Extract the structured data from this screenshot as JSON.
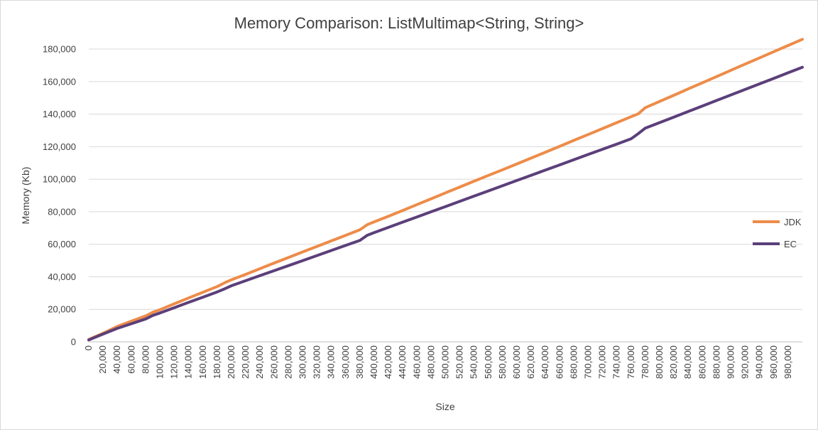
{
  "chart_data": {
    "type": "line",
    "title": "Memory Comparison: ListMultimap<String, String>",
    "xlabel": "Size",
    "ylabel": "Memory  (Kb)",
    "ylim": [
      0,
      180000
    ],
    "yticks": [
      "0",
      "20,000",
      "40,000",
      "60,000",
      "80,000",
      "100,000",
      "120,000",
      "140,000",
      "160,000",
      "180,000"
    ],
    "xlim": [
      0,
      1000000
    ],
    "xticks": [
      "0",
      "20,000",
      "40,000",
      "60,000",
      "80,000",
      "100,000",
      "120,000",
      "140,000",
      "160,000",
      "180,000",
      "200,000",
      "220,000",
      "240,000",
      "260,000",
      "280,000",
      "300,000",
      "320,000",
      "340,000",
      "360,000",
      "380,000",
      "400,000",
      "420,000",
      "440,000",
      "460,000",
      "480,000",
      "500,000",
      "520,000",
      "540,000",
      "560,000",
      "580,000",
      "600,000",
      "620,000",
      "640,000",
      "660,000",
      "680,000",
      "700,000",
      "720,000",
      "740,000",
      "760,000",
      "780,000",
      "800,000",
      "820,000",
      "840,000",
      "860,000",
      "880,000",
      "900,000",
      "920,000",
      "940,000",
      "960,000",
      "980,000"
    ],
    "grid": true,
    "legend_position": "right",
    "x": [
      0,
      20000,
      40000,
      60000,
      80000,
      90000,
      100000,
      120000,
      140000,
      160000,
      180000,
      190000,
      200000,
      220000,
      240000,
      260000,
      280000,
      300000,
      320000,
      340000,
      360000,
      380000,
      390000,
      400000,
      420000,
      440000,
      460000,
      480000,
      500000,
      520000,
      540000,
      560000,
      580000,
      600000,
      620000,
      640000,
      660000,
      680000,
      700000,
      720000,
      740000,
      760000,
      770000,
      780000,
      800000,
      820000,
      840000,
      860000,
      880000,
      900000,
      920000,
      940000,
      960000,
      980000,
      1000000
    ],
    "series": [
      {
        "name": "JDK",
        "color": "#ed8c49",
        "values": [
          1500,
          5300,
          9500,
          12800,
          16000,
          18200,
          19800,
          23400,
          27000,
          30500,
          34000,
          36200,
          38200,
          41500,
          45000,
          48500,
          51900,
          55300,
          58700,
          62100,
          65500,
          68900,
          72000,
          73800,
          77200,
          80800,
          84400,
          88000,
          91600,
          95200,
          98800,
          102300,
          105800,
          109400,
          113000,
          116600,
          120200,
          123900,
          127500,
          131100,
          134800,
          138400,
          140200,
          144000,
          147800,
          151600,
          155500,
          159300,
          163100,
          167000,
          170800,
          174600,
          178400,
          182200,
          186000
        ]
      },
      {
        "name": "EC",
        "color": "#5b3f7a",
        "values": [
          1200,
          4800,
          8300,
          11200,
          14100,
          16300,
          17800,
          21000,
          24300,
          27500,
          30700,
          32500,
          34500,
          37600,
          40700,
          43800,
          46900,
          50000,
          53100,
          56200,
          59300,
          62400,
          65500,
          67200,
          70400,
          73600,
          76800,
          80000,
          83200,
          86400,
          89600,
          92800,
          96000,
          99200,
          102400,
          105600,
          108800,
          112000,
          115200,
          118400,
          121600,
          124800,
          128000,
          131400,
          134800,
          138200,
          141600,
          145000,
          148400,
          151800,
          155200,
          158600,
          162000,
          165400,
          168800
        ]
      }
    ]
  }
}
